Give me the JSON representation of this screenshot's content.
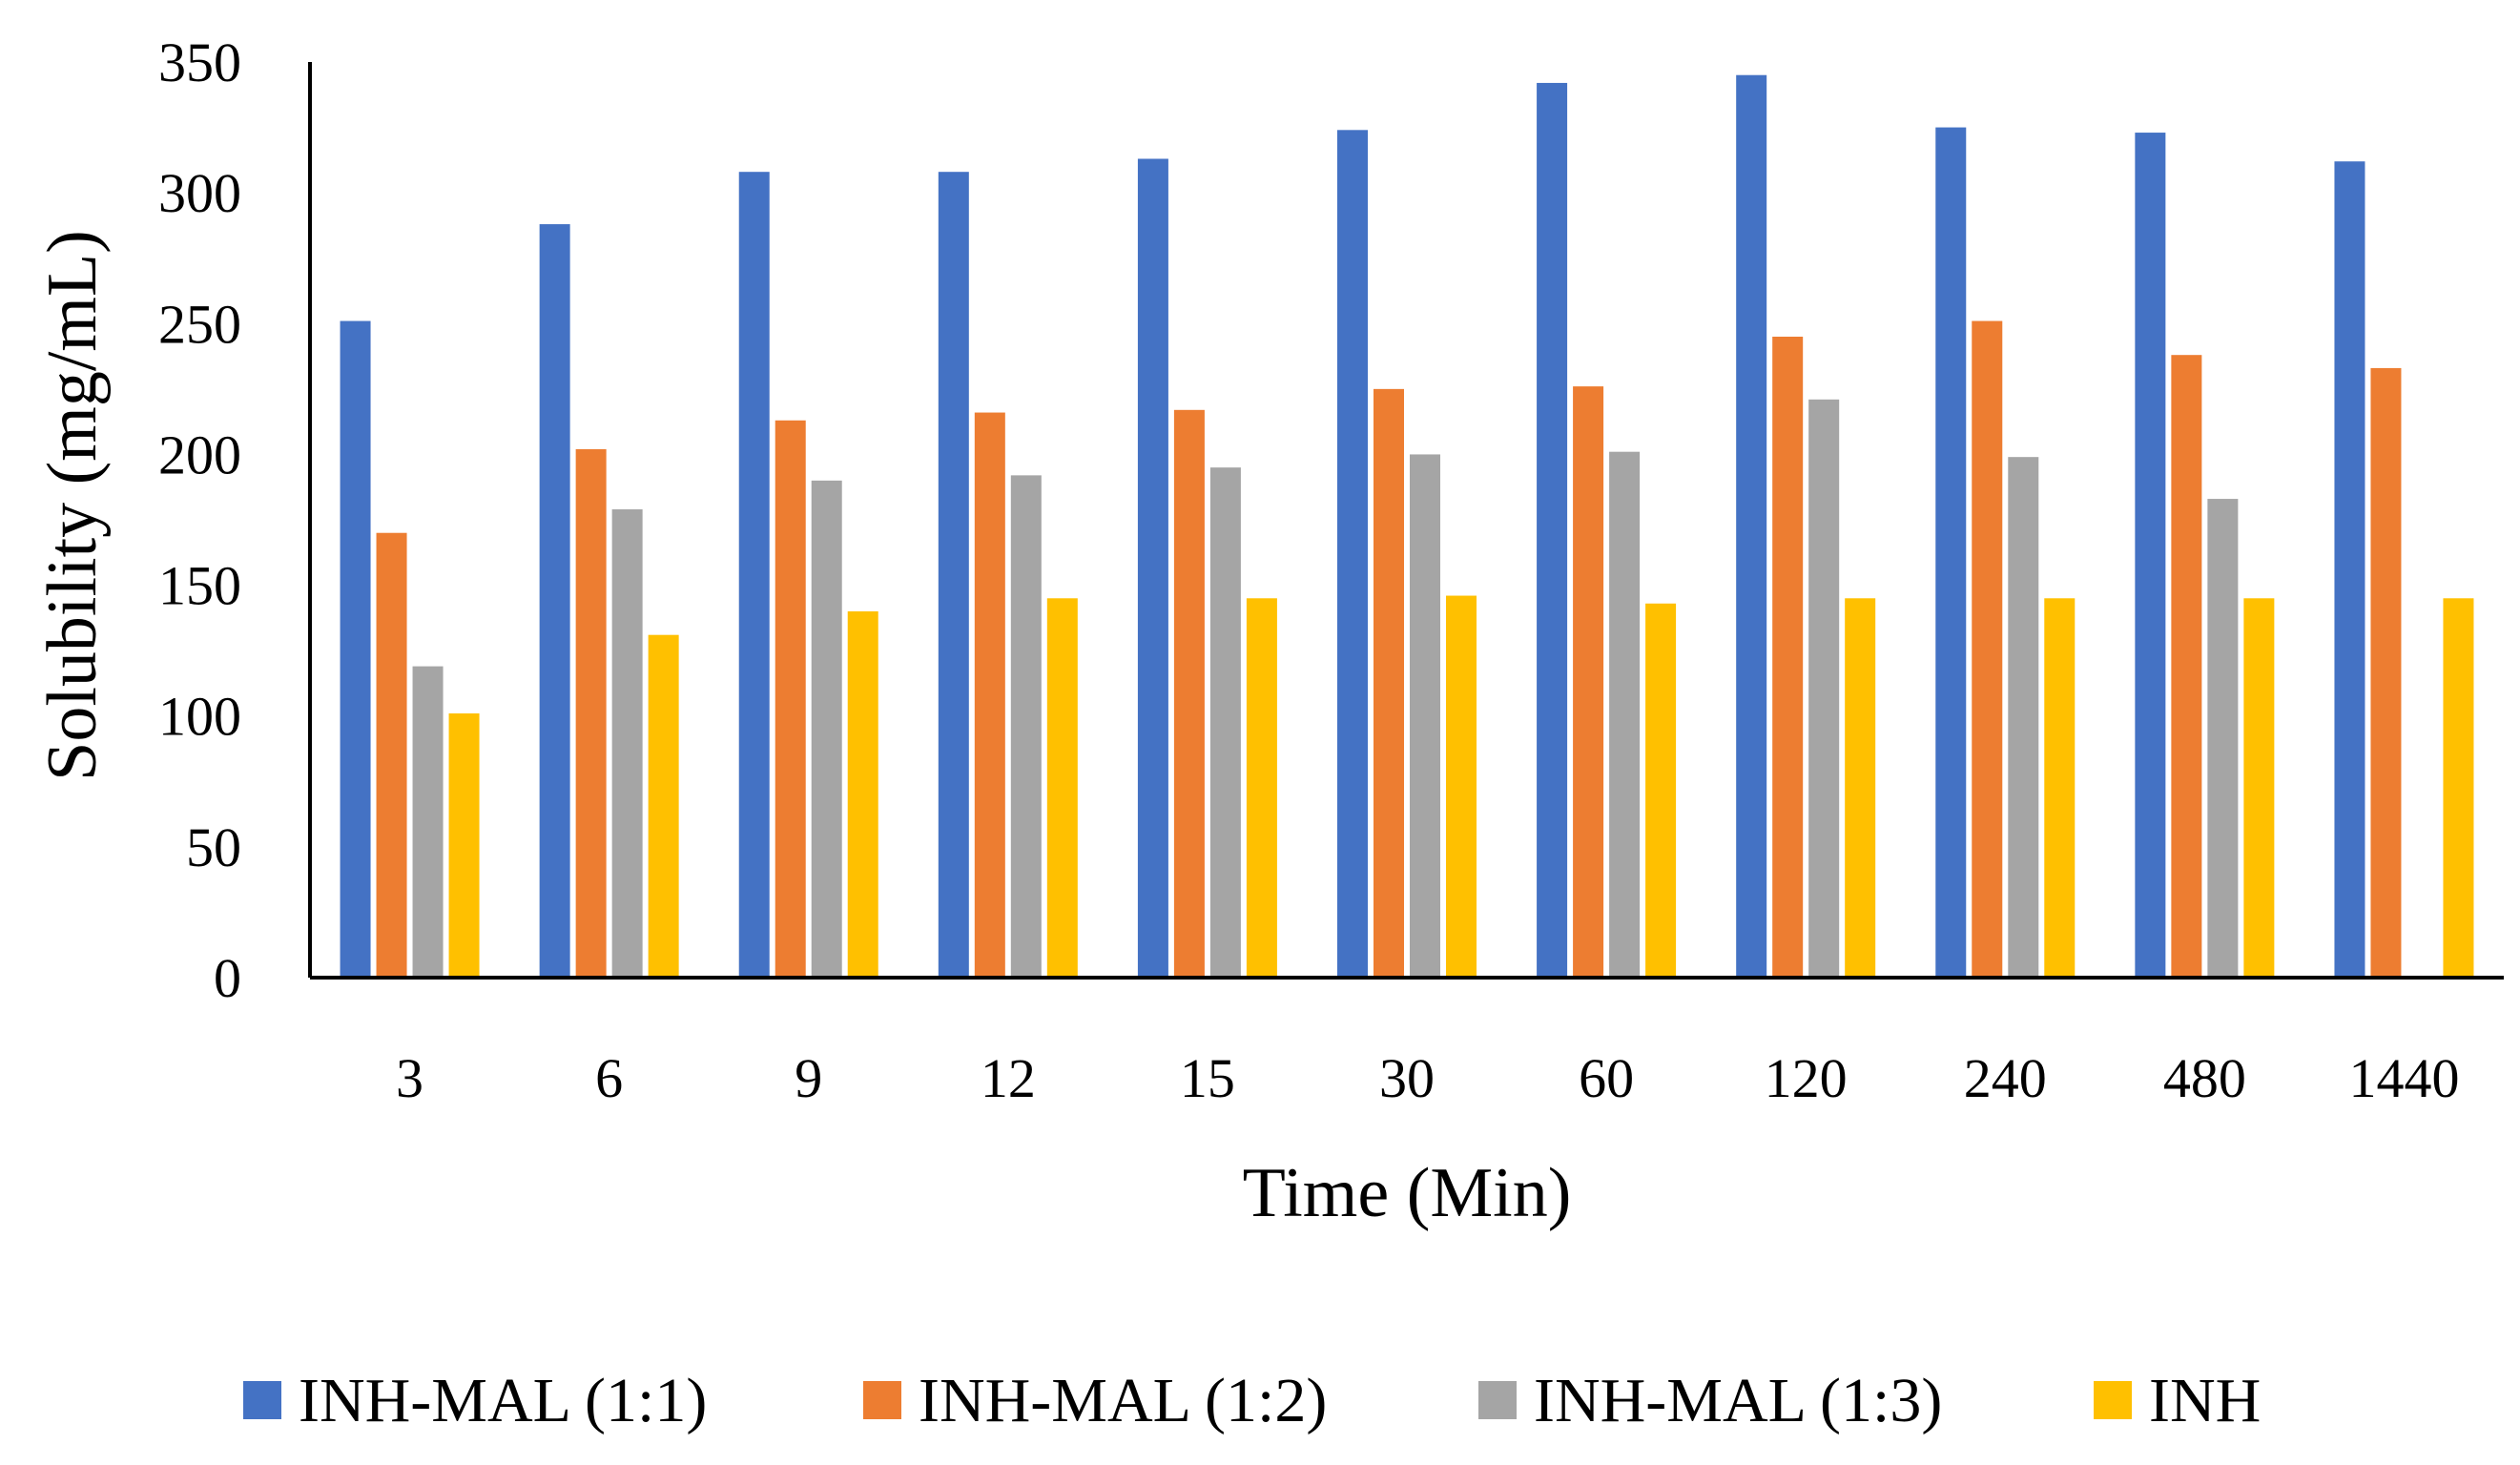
{
  "chart_data": {
    "type": "bar",
    "title": "",
    "xlabel": "Time (Min)",
    "ylabel": "Solubility (mg/mL)",
    "ylim": [
      0,
      350
    ],
    "yticks": [
      0,
      50,
      100,
      150,
      200,
      250,
      300,
      350
    ],
    "categories": [
      "3",
      "6",
      "9",
      "12",
      "15",
      "30",
      "60",
      "120",
      "240",
      "480",
      "1440"
    ],
    "series": [
      {
        "name": "INH-MAL (1:1)",
        "color": "#4472C4",
        "values": [
          251,
          288,
          308,
          308,
          313,
          324,
          342,
          345,
          325,
          323,
          312
        ]
      },
      {
        "name": "INH-MAL (1:2)",
        "color": "#ED7D31",
        "values": [
          170,
          202,
          213,
          216,
          217,
          225,
          226,
          245,
          251,
          238,
          233
        ]
      },
      {
        "name": "INH-MAL (1:3)",
        "color": "#A5A5A5",
        "values": [
          119,
          179,
          190,
          192,
          195,
          200,
          201,
          221,
          199,
          183,
          null
        ]
      },
      {
        "name": "INH",
        "color": "#FFC000",
        "values": [
          101,
          131,
          140,
          145,
          145,
          146,
          143,
          145,
          145,
          145,
          145
        ]
      }
    ],
    "legend_position": "bottom",
    "grid": false
  }
}
